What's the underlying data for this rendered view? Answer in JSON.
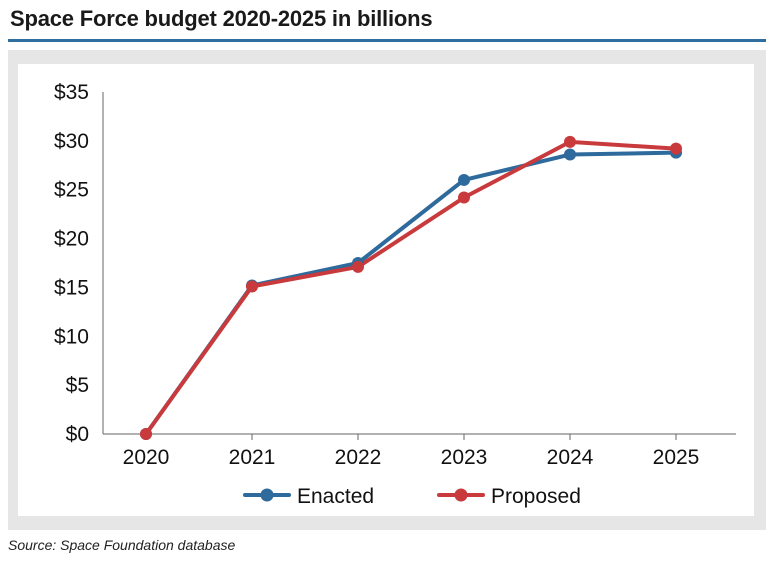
{
  "header": {
    "title": "Space Force budget 2020-2025 in billions"
  },
  "footer": {
    "source": "Source: Space Foundation database"
  },
  "colors": {
    "enacted": "#2e6a9c",
    "proposed": "#c83a3c",
    "axis": "#666666",
    "rule": "#2f6f9f"
  },
  "chart_data": {
    "type": "line",
    "title": "Space Force budget 2020-2025 in billions",
    "xlabel": "",
    "ylabel": "",
    "categories": [
      "2020",
      "2021",
      "2022",
      "2023",
      "2024",
      "2025"
    ],
    "y_ticks": [
      0,
      5,
      10,
      15,
      20,
      25,
      30,
      35
    ],
    "y_tick_labels": [
      "$0",
      "$5",
      "$10",
      "$15",
      "$20",
      "$25",
      "$30",
      "$35"
    ],
    "ylim": [
      0,
      35
    ],
    "grid": false,
    "legend_position": "bottom-center",
    "series": [
      {
        "name": "Enacted",
        "values": [
          0,
          15.2,
          17.5,
          26.0,
          28.6,
          28.8
        ]
      },
      {
        "name": "Proposed",
        "values": [
          0,
          15.1,
          17.1,
          24.2,
          29.9,
          29.2
        ]
      }
    ]
  }
}
